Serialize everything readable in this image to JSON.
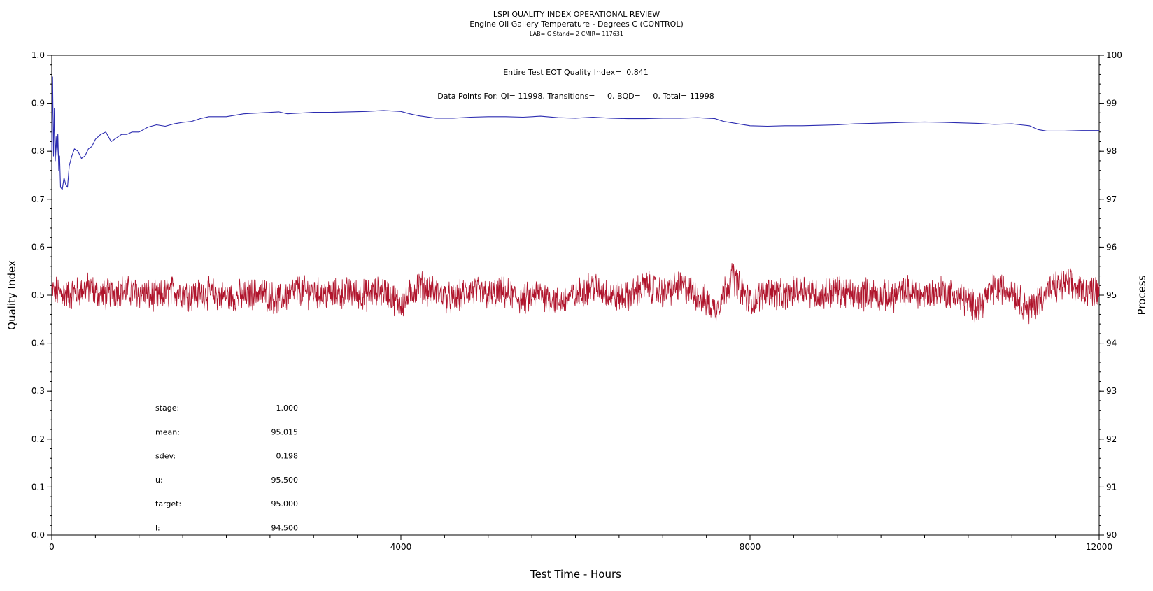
{
  "chart_data": {
    "type": "line",
    "title": "LSPI QUALITY INDEX OPERATIONAL REVIEW",
    "subtitle": "Engine Oil Gallery Temperature - Degrees C (CONTROL)",
    "subtitle2": "LAB= G Stand= 2 CMIR= 117631",
    "xlabel": "Test Time - Hours",
    "ylabel": "Quality Index",
    "y2label": "Process",
    "xlim": [
      0,
      12000
    ],
    "ylim": [
      0.0,
      1.0
    ],
    "y2lim": [
      90,
      100
    ],
    "x_ticks": [
      0,
      4000,
      8000,
      12000
    ],
    "y_ticks": [
      "0.0",
      "0.1",
      "0.2",
      "0.3",
      "0.4",
      "0.5",
      "0.6",
      "0.7",
      "0.8",
      "0.9",
      "1.0"
    ],
    "y2_ticks": [
      "90",
      "91",
      "92",
      "93",
      "94",
      "95",
      "96",
      "97",
      "98",
      "99",
      "100"
    ],
    "grid": false,
    "annotations": {
      "quality_index_text": "Entire Test EOT Quality Index=  0.841",
      "data_points_text": "Data Points For: QI= 11998, Transitions=     0, BQD=     0, Total= 11998"
    },
    "stats": [
      {
        "label": "stage:",
        "value": "1.000"
      },
      {
        "label": "mean:",
        "value": "95.015"
      },
      {
        "label": "sdev:",
        "value": "0.198"
      },
      {
        "label": "u:",
        "value": "95.500"
      },
      {
        "label": "target:",
        "value": "95.000"
      },
      {
        "label": "l:",
        "value": "94.500"
      }
    ],
    "series": [
      {
        "color": "#2b2bb0",
        "axis": "left",
        "x": [
          0,
          10,
          20,
          30,
          40,
          50,
          60,
          70,
          80,
          90,
          100,
          120,
          140,
          160,
          180,
          200,
          230,
          260,
          300,
          340,
          380,
          420,
          460,
          500,
          560,
          620,
          680,
          720,
          760,
          800,
          860,
          920,
          1000,
          1100,
          1200,
          1300,
          1400,
          1500,
          1600,
          1700,
          1800,
          2000,
          2200,
          2400,
          2600,
          2700,
          2800,
          3000,
          3200,
          3400,
          3600,
          3800,
          4000,
          4100,
          4200,
          4400,
          4600,
          4800,
          5000,
          5200,
          5400,
          5600,
          5800,
          6000,
          6200,
          6400,
          6600,
          6800,
          7000,
          7200,
          7400,
          7500,
          7600,
          7700,
          7800,
          7900,
          8000,
          8200,
          8400,
          8600,
          8800,
          9000,
          9200,
          9400,
          9600,
          9800,
          10000,
          10200,
          10400,
          10600,
          10800,
          11000,
          11100,
          11200,
          11300,
          11400,
          11600,
          11800,
          12000
        ],
        "values": [
          0.8,
          0.955,
          0.79,
          0.89,
          0.78,
          0.83,
          0.79,
          0.835,
          0.76,
          0.79,
          0.725,
          0.72,
          0.745,
          0.73,
          0.725,
          0.77,
          0.79,
          0.805,
          0.8,
          0.785,
          0.79,
          0.805,
          0.81,
          0.825,
          0.835,
          0.84,
          0.82,
          0.825,
          0.83,
          0.835,
          0.835,
          0.84,
          0.84,
          0.85,
          0.855,
          0.852,
          0.857,
          0.86,
          0.862,
          0.868,
          0.872,
          0.872,
          0.878,
          0.88,
          0.882,
          0.878,
          0.879,
          0.881,
          0.881,
          0.882,
          0.883,
          0.885,
          0.883,
          0.878,
          0.874,
          0.869,
          0.869,
          0.871,
          0.872,
          0.872,
          0.871,
          0.873,
          0.87,
          0.869,
          0.871,
          0.869,
          0.868,
          0.868,
          0.869,
          0.869,
          0.87,
          0.869,
          0.868,
          0.862,
          0.859,
          0.856,
          0.853,
          0.852,
          0.853,
          0.853,
          0.854,
          0.855,
          0.857,
          0.858,
          0.859,
          0.86,
          0.861,
          0.86,
          0.859,
          0.858,
          0.856,
          0.857,
          0.855,
          0.853,
          0.845,
          0.842,
          0.842,
          0.843,
          0.843
        ]
      },
      {
        "color": "#b0142c",
        "axis": "right",
        "x": [
          0,
          200,
          400,
          600,
          800,
          1000,
          1200,
          1400,
          1600,
          1800,
          2000,
          2200,
          2400,
          2600,
          2800,
          3000,
          3200,
          3400,
          3600,
          3800,
          4000,
          4200,
          4400,
          4600,
          4800,
          5000,
          5200,
          5400,
          5600,
          5800,
          6000,
          6200,
          6400,
          6600,
          6800,
          7000,
          7200,
          7400,
          7600,
          7800,
          8000,
          8200,
          8400,
          8600,
          8800,
          9000,
          9200,
          9400,
          9600,
          9800,
          10000,
          10200,
          10400,
          10600,
          10800,
          11000,
          11200,
          11400,
          11600,
          11800,
          12000
        ],
        "values": [
          95.1,
          95.0,
          95.15,
          95.0,
          95.1,
          95.05,
          94.95,
          95.1,
          95.0,
          95.05,
          94.95,
          95.0,
          95.05,
          94.9,
          95.1,
          95.05,
          95.0,
          95.05,
          95.0,
          95.1,
          94.8,
          95.2,
          95.05,
          94.9,
          95.1,
          95.0,
          95.05,
          94.9,
          95.05,
          94.85,
          95.0,
          95.2,
          95.0,
          94.95,
          95.2,
          95.05,
          95.2,
          95.0,
          94.7,
          95.4,
          94.85,
          95.1,
          94.95,
          95.15,
          95.0,
          95.1,
          95.0,
          95.05,
          94.95,
          95.1,
          95.0,
          95.1,
          94.95,
          94.75,
          95.15,
          95.1,
          94.7,
          95.05,
          95.25,
          95.1,
          95.1
        ]
      }
    ]
  }
}
